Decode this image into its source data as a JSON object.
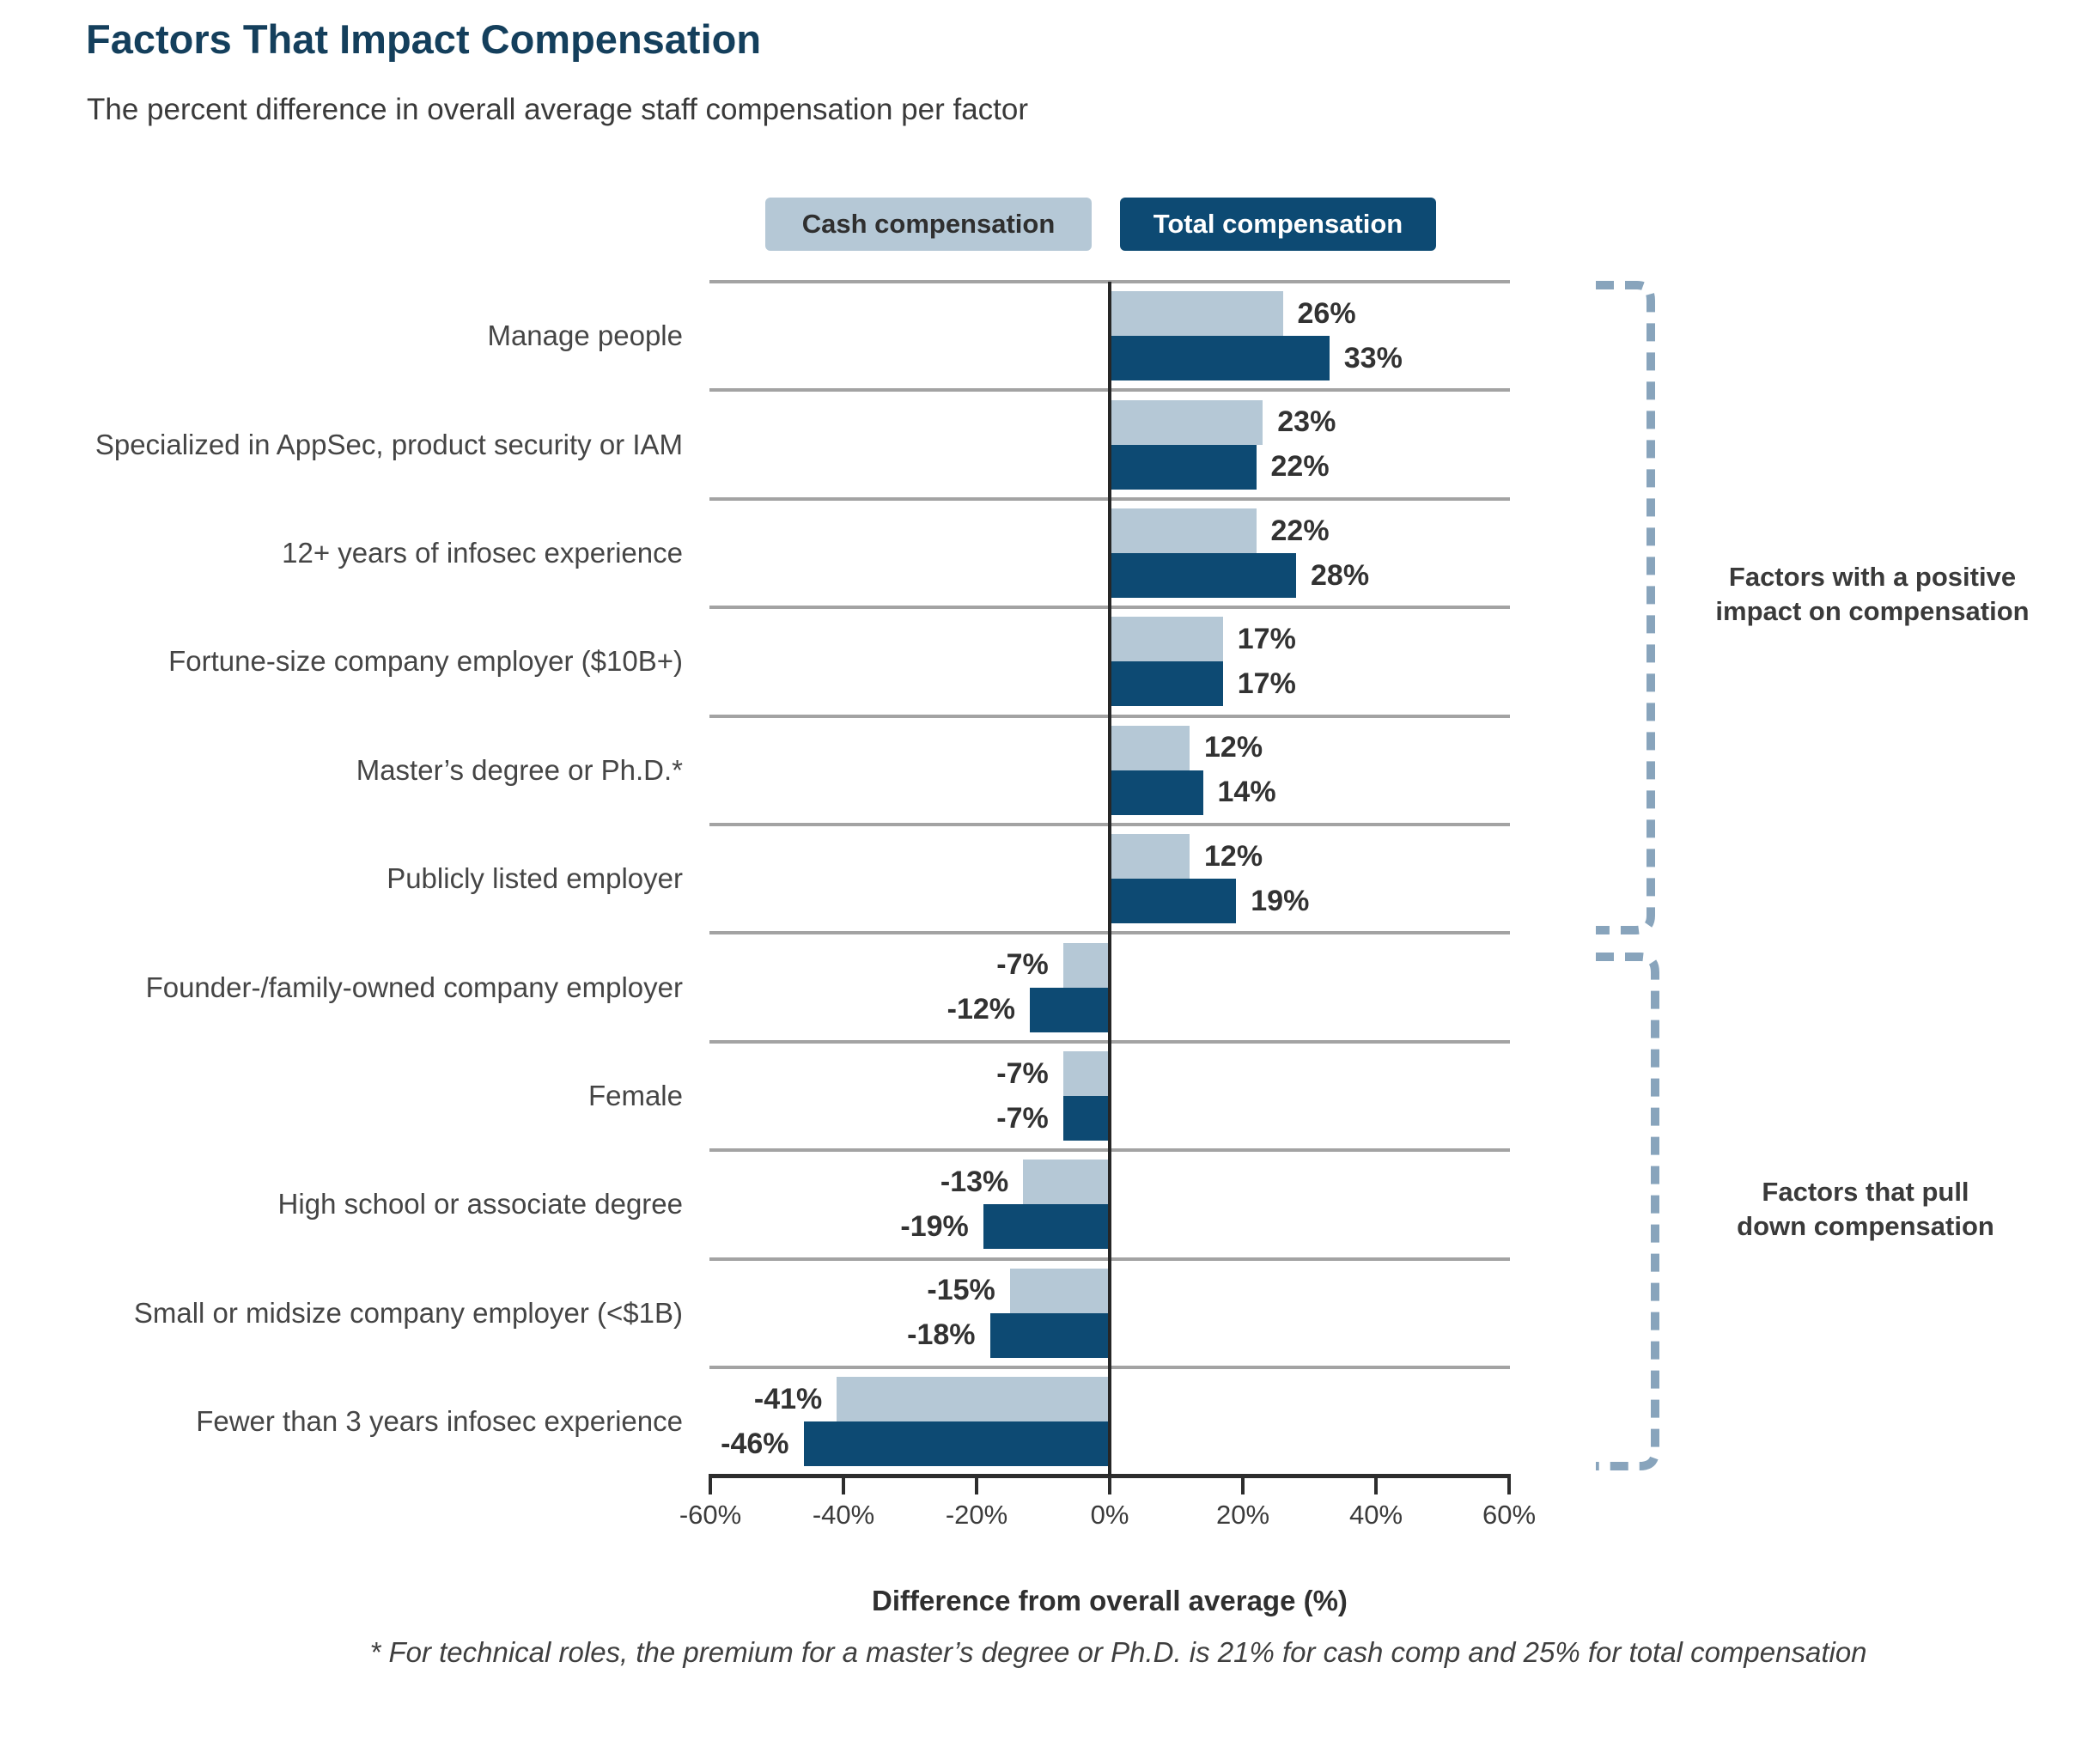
{
  "title": "Factors That Impact Compensation",
  "subtitle": "The percent difference in overall average staff compensation per factor",
  "legend": {
    "cash": "Cash compensation",
    "total": "Total compensation"
  },
  "chart_data": {
    "type": "bar",
    "orientation": "horizontal",
    "title": "Factors That Impact Compensation",
    "subtitle": "The percent difference in overall average staff compensation per factor",
    "categories": [
      "Manage people",
      "Specialized in AppSec, product security or IAM",
      "12+ years of infosec experience",
      "Fortune-size company employer ($10B+)",
      "Master’s degree or Ph.D.*",
      "Publicly listed employer",
      "Founder-/family-owned company employer",
      "Female",
      "High school or associate degree",
      "Small or midsize company employer (<$1B)",
      "Fewer than 3 years infosec experience"
    ],
    "series": [
      {
        "name": "Cash compensation",
        "color": "#b5c8d6",
        "values": [
          26,
          23,
          22,
          17,
          12,
          12,
          -7,
          -7,
          -13,
          -15,
          -41
        ],
        "labels": [
          "26%",
          "23%",
          "22%",
          "17%",
          "12%",
          "12%",
          "-7%",
          "-7%",
          "-13%",
          "-15%",
          "-41%"
        ]
      },
      {
        "name": "Total compensation",
        "color": "#0d4a73",
        "values": [
          33,
          22,
          28,
          17,
          14,
          19,
          -12,
          -7,
          -19,
          -18,
          -46
        ],
        "labels": [
          "33%",
          "22%",
          "28%",
          "17%",
          "14%",
          "19%",
          "-12%",
          "-7%",
          "-19%",
          "-18%",
          "-46%"
        ]
      }
    ],
    "xlim": [
      -60,
      60
    ],
    "x_ticks": [
      "-60%",
      "-40%",
      "-20%",
      "0%",
      "20%",
      "40%",
      "60%"
    ],
    "xlabel": "Difference from overall average (%)",
    "grid": "horizontal row separators",
    "legend_position": "top"
  },
  "annotations": {
    "positive": {
      "line1": "Factors with a positive",
      "line2": "impact on compensation"
    },
    "negative": {
      "line1": "Factors that pull",
      "line2": "down compensation"
    }
  },
  "footnote": "* For technical roles, the premium for a master’s degree or Ph.D. is 21% for cash comp and 25% for total compensation",
  "colors": {
    "title": "#143f5c",
    "cash_bar": "#b5c8d6",
    "total_bar": "#0d4a73",
    "row_separator": "#a3a3a3",
    "axis": "#2d2d2d",
    "bracket": "#88a4bc",
    "value_label": "#323232"
  }
}
